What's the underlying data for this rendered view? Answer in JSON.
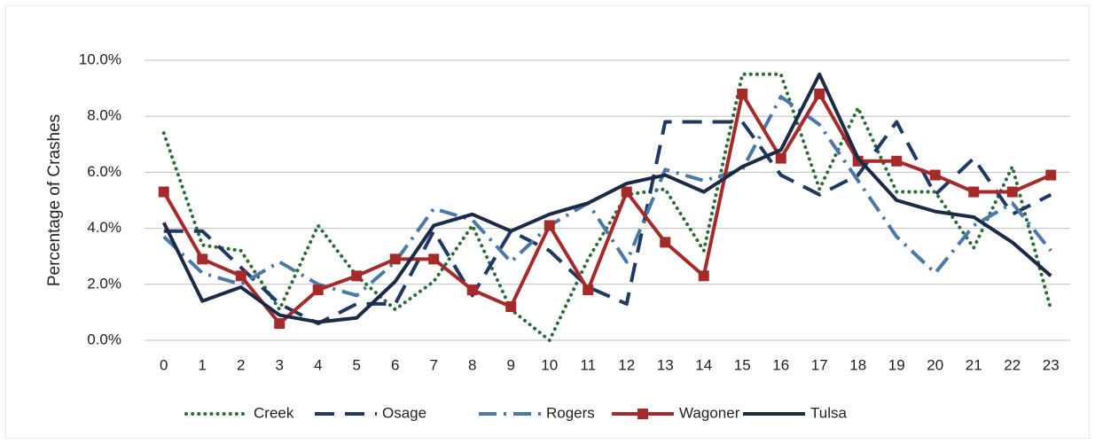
{
  "chart_data": {
    "type": "line",
    "y_label": "Percentage of Crashes",
    "categories": [
      "0",
      "1",
      "2",
      "3",
      "4",
      "5",
      "6",
      "7",
      "8",
      "9",
      "10",
      "11",
      "12",
      "13",
      "14",
      "15",
      "16",
      "17",
      "18",
      "19",
      "20",
      "21",
      "22",
      "23"
    ],
    "ylim": [
      0,
      10
    ],
    "yticks": [
      {
        "value": 0,
        "label": "0.0%"
      },
      {
        "value": 2,
        "label": "2.0%"
      },
      {
        "value": 4,
        "label": "4.0%"
      },
      {
        "value": 6,
        "label": "6.0%"
      },
      {
        "value": 8,
        "label": "8.0%"
      },
      {
        "value": 10,
        "label": "10.0%"
      }
    ],
    "grid": true,
    "legend": "bottom",
    "series": [
      {
        "name": "Creek",
        "color": "#2e6b3a",
        "line_style": "dotted",
        "values": [
          7.4,
          3.4,
          3.2,
          1.1,
          4.1,
          2.3,
          1.1,
          2.1,
          4.1,
          1.1,
          0.0,
          2.9,
          5.2,
          5.4,
          3.2,
          9.5,
          9.5,
          5.4,
          8.3,
          5.3,
          5.3,
          3.3,
          6.2,
          1.1
        ]
      },
      {
        "name": "Osage",
        "color": "#1f3864",
        "line_style": "dashed",
        "values": [
          3.9,
          3.9,
          2.6,
          1.3,
          0.6,
          1.3,
          1.3,
          3.9,
          1.6,
          3.9,
          3.2,
          1.9,
          1.3,
          7.8,
          7.8,
          7.8,
          5.9,
          5.2,
          5.9,
          7.8,
          5.2,
          6.5,
          4.5,
          5.2
        ]
      },
      {
        "name": "Rogers",
        "color": "#4a78a8",
        "line_style": "dashdot",
        "values": [
          3.7,
          2.4,
          2.0,
          2.8,
          2.0,
          1.6,
          2.8,
          4.7,
          4.3,
          2.8,
          4.1,
          4.9,
          2.8,
          6.1,
          5.7,
          6.1,
          8.7,
          7.7,
          5.7,
          3.7,
          2.4,
          4.1,
          4.9,
          3.2
        ]
      },
      {
        "name": "Wagoner",
        "color": "#a52a2a",
        "line_style": "solid",
        "marker": "square",
        "values": [
          5.3,
          2.9,
          2.3,
          0.6,
          1.8,
          2.3,
          2.9,
          2.9,
          1.8,
          1.2,
          4.1,
          1.8,
          5.3,
          3.5,
          2.3,
          8.8,
          6.5,
          8.8,
          6.4,
          6.4,
          5.9,
          5.3,
          5.3,
          5.9
        ]
      },
      {
        "name": "Tulsa",
        "color": "#1c2b45",
        "line_style": "solid",
        "values": [
          4.2,
          1.4,
          1.9,
          0.9,
          0.65,
          0.8,
          2.1,
          4.1,
          4.5,
          3.9,
          4.5,
          4.9,
          5.6,
          5.9,
          5.3,
          6.2,
          6.8,
          9.5,
          6.5,
          5.0,
          4.6,
          4.4,
          3.5,
          2.3
        ]
      }
    ]
  }
}
